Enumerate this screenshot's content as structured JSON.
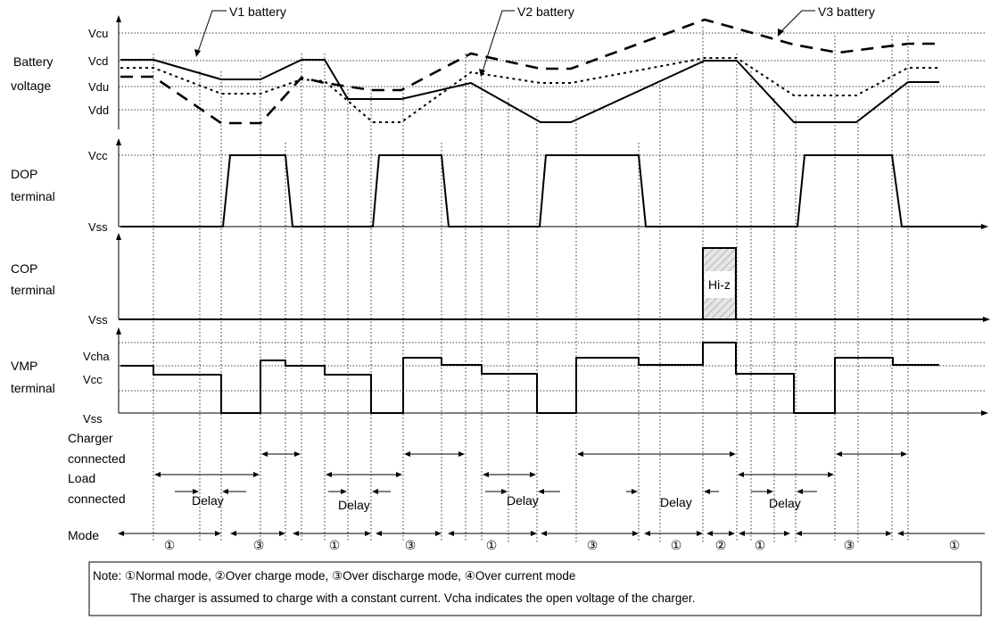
{
  "callouts": {
    "v1": "V1 battery",
    "v2": "V2 battery",
    "v3": "V3 battery"
  },
  "panels": {
    "battery": {
      "label_line1": "Battery",
      "label_line2": "voltage",
      "ticks": [
        "Vcu",
        "Vcd",
        "Vdu",
        "Vdd"
      ]
    },
    "dop": {
      "label_line1": "DOP",
      "label_line2": "terminal",
      "ticks": [
        "Vcc",
        "Vss"
      ]
    },
    "cop": {
      "label_line1": "COP",
      "label_line2": "terminal",
      "ticks": [
        "Vss"
      ],
      "hiz_label": "Hi-z"
    },
    "vmp": {
      "label_line1": "VMP",
      "label_line2": "terminal",
      "ticks": [
        "Vcha",
        "Vcc",
        "Vss"
      ]
    }
  },
  "rows": {
    "charger": {
      "line1": "Charger",
      "line2": "connected"
    },
    "load": {
      "line1": "Load",
      "line2": "connected"
    },
    "delay_label": "Delay",
    "mode_label": "Mode"
  },
  "modes": [
    "①",
    "③",
    "①",
    "③",
    "①",
    "③",
    "①",
    "②",
    "①",
    "③",
    "①"
  ],
  "note": {
    "line1": "Note: ①Normal mode,  ②Over charge mode,  ③Over discharge mode,  ④Over current mode",
    "line2": "The charger is assumed to charge with a constant current.  Vcha indicates the open voltage of the charger."
  }
}
